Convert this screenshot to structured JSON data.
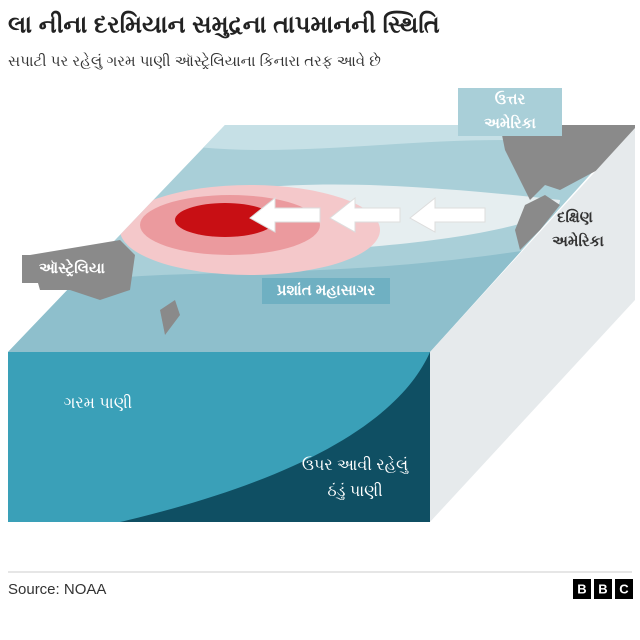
{
  "header": {
    "title": "લા નીના દરમિયાન સમુદ્રના તાપમાનની સ્થિતિ",
    "subtitle": "સપાટી પર રહેલું ગરમ પાણી ઑસ્ટ્રેલિયાના કિનારા તરફ આવે છે"
  },
  "labels": {
    "north_america": [
      "ઉત્તર",
      "અમેરિકા"
    ],
    "south_america": [
      "દક્ષિણ",
      "અમેરિકા"
    ],
    "australia": "ઑસ્ટ્રેલિયા",
    "ocean": "પ્રશાંત મહાસાગર",
    "warm_water": "ગરમ પાણી",
    "cold_water": [
      "ઉપર આવી રહેલું",
      "ઠંડું પાણી"
    ]
  },
  "footer": {
    "source": "Source: NOAA",
    "logo": [
      "B",
      "B",
      "C"
    ]
  }
}
